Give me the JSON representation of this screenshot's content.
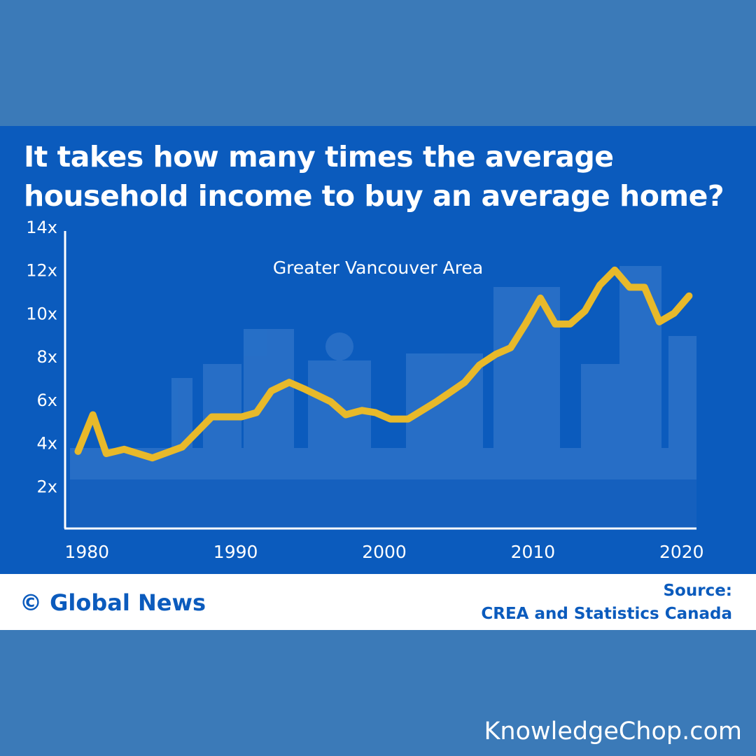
{
  "title_lines": [
    "It takes how many times the average",
    "household income to buy an average home?"
  ],
  "footer": {
    "brand": "© Global News",
    "source_label": "Source:",
    "source_text": "CREA and Statistics Canada"
  },
  "watermark": "KnowledgeChop.com",
  "colors": {
    "page_background": "#3b7ab8",
    "card_background": "#0b5bbd",
    "line": "#e8b92a",
    "axis": "#ffffff"
  },
  "chart_data": {
    "type": "line",
    "annotation": "Greater Vancouver Area",
    "xlim": [
      1979,
      2021
    ],
    "ylim": [
      0,
      14
    ],
    "x_ticks": [
      {
        "value": 1980,
        "label": "1980"
      },
      {
        "value": 1990,
        "label": "1990"
      },
      {
        "value": 2000,
        "label": "2000"
      },
      {
        "value": 2010,
        "label": "2010"
      },
      {
        "value": 2020,
        "label": "2020"
      }
    ],
    "y_ticks": [
      {
        "value": 2,
        "label": "2x"
      },
      {
        "value": 4,
        "label": "4x"
      },
      {
        "value": 6,
        "label": "6x"
      },
      {
        "value": 8,
        "label": "8x"
      },
      {
        "value": 10,
        "label": "10x"
      },
      {
        "value": 12,
        "label": "12x"
      },
      {
        "value": 14,
        "label": "14x"
      }
    ],
    "grid": false,
    "series": [
      {
        "x": [
          1979.4,
          1980.4,
          1981.3,
          1982.5,
          1984.4,
          1986.4,
          1988.4,
          1990.4,
          1991.4,
          1992.4,
          1993.6,
          1994.6,
          1996.4,
          1997.4,
          1998.5,
          1999.4,
          2000.4,
          2001.6,
          2003.5,
          2005.4,
          2006.4,
          2007.5,
          2008.5,
          2009.5,
          2010.5,
          2011.5,
          2012.5,
          2013.5,
          2014.5,
          2015.5,
          2016.5,
          2017.5,
          2018.5,
          2019.5,
          2020.5
        ],
        "y": [
          3.6,
          5.3,
          3.5,
          3.7,
          3.3,
          3.8,
          5.2,
          5.2,
          5.4,
          6.4,
          6.8,
          6.5,
          5.9,
          5.3,
          5.5,
          5.4,
          5.1,
          5.1,
          5.9,
          6.8,
          7.6,
          8.1,
          8.4,
          9.5,
          10.7,
          9.5,
          9.5,
          10.1,
          11.3,
          12.0,
          11.2,
          11.2,
          9.6,
          10.0,
          10.8
        ]
      }
    ]
  }
}
